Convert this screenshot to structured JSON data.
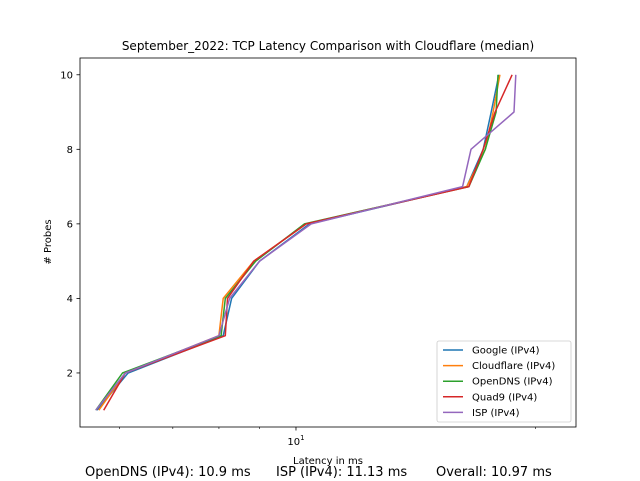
{
  "chart_data": {
    "type": "line",
    "title": "September_2022: TCP Latency Comparison with Cloudflare (median)",
    "xlabel": "Latency in ms",
    "ylabel": "# Probes",
    "xscale": "log",
    "xlim": [
      5.35,
      22.5
    ],
    "ylim": [
      0.55,
      10.45
    ],
    "xticks": [
      {
        "value": 10,
        "label": "10^1"
      }
    ],
    "yticks": [
      2,
      4,
      6,
      8,
      10
    ],
    "grid": false,
    "legend_position": "lower right",
    "series": [
      {
        "name": "Google (IPv4)",
        "color": "#1f77b4",
        "points": [
          [
            5.62,
            1
          ],
          [
            6.15,
            2
          ],
          [
            8.1,
            3
          ],
          [
            8.3,
            4
          ],
          [
            9.0,
            5
          ],
          [
            10.4,
            6
          ],
          [
            16.4,
            7
          ],
          [
            17.2,
            8
          ],
          [
            17.6,
            9
          ],
          [
            18.0,
            10
          ]
        ]
      },
      {
        "name": "Cloudflare (IPv4)",
        "color": "#ff7f0e",
        "points": [
          [
            5.65,
            1
          ],
          [
            6.1,
            2
          ],
          [
            8.0,
            3
          ],
          [
            8.1,
            4
          ],
          [
            8.85,
            5
          ],
          [
            10.3,
            6
          ],
          [
            16.4,
            7
          ],
          [
            17.3,
            8
          ],
          [
            17.7,
            9
          ],
          [
            18.05,
            10
          ]
        ]
      },
      {
        "name": "OpenDNS (IPv4)",
        "color": "#2ca02c",
        "points": [
          [
            5.6,
            1
          ],
          [
            6.05,
            2
          ],
          [
            8.05,
            3
          ],
          [
            8.15,
            4
          ],
          [
            8.9,
            5
          ],
          [
            10.25,
            6
          ],
          [
            16.5,
            7
          ],
          [
            17.3,
            8
          ],
          [
            17.85,
            9
          ],
          [
            17.95,
            10
          ]
        ]
      },
      {
        "name": "Quad9 (IPv4)",
        "color": "#d62728",
        "points": [
          [
            5.73,
            1
          ],
          [
            6.1,
            2
          ],
          [
            8.15,
            3
          ],
          [
            8.2,
            4
          ],
          [
            8.85,
            5
          ],
          [
            10.3,
            6
          ],
          [
            16.5,
            7
          ],
          [
            17.2,
            8
          ],
          [
            17.8,
            9
          ],
          [
            18.7,
            10
          ]
        ]
      },
      {
        "name": "ISP (IPv4)",
        "color": "#9467bd",
        "points": [
          [
            5.6,
            1
          ],
          [
            6.1,
            2
          ],
          [
            8.0,
            3
          ],
          [
            8.25,
            4
          ],
          [
            9.0,
            5
          ],
          [
            10.45,
            6
          ],
          [
            16.2,
            7
          ],
          [
            16.6,
            8
          ],
          [
            18.8,
            9
          ],
          [
            18.9,
            10
          ]
        ]
      }
    ]
  },
  "footer": {
    "opendns": "OpenDNS (IPv4): 10.9 ms",
    "isp": "ISP (IPv4): 11.13 ms",
    "overall": "Overall: 10.97 ms"
  }
}
